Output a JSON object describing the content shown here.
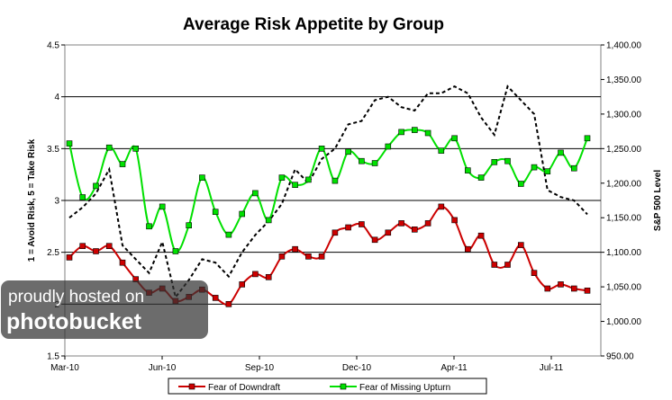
{
  "chart_data": {
    "type": "line",
    "title": "Average Risk Appetite by Group",
    "ylabel": "1 = Avoid Risk, 5 = Take Risk",
    "y2label": "S&P 500 Level",
    "ylim": [
      1.5,
      4.5
    ],
    "yticks": [
      "1.5",
      "2",
      "2.5",
      "3",
      "3.5",
      "4",
      "4.5"
    ],
    "y2lim": [
      950,
      1400
    ],
    "y2ticks": [
      "950.00",
      "1,000.00",
      "1,050.00",
      "1,100.00",
      "1,150.00",
      "1,200.00",
      "1,250.00",
      "1,300.00",
      "1,350.00",
      "1,400.00"
    ],
    "xticks": [
      "Mar-10",
      "Jun-10",
      "Sep-10",
      "Dec-10",
      "Apr-11",
      "Jul-11"
    ],
    "grid": "horizontal",
    "colors": {
      "downdraft": "#cc0000",
      "upturn": "#00e000",
      "sp500": "#000000"
    },
    "series": [
      {
        "name": "Fear of Downdraft",
        "marker": "square",
        "axis": "left",
        "values": [
          2.45,
          2.56,
          2.51,
          2.56,
          2.4,
          2.24,
          2.11,
          2.15,
          2.03,
          2.07,
          2.14,
          2.06,
          2.0,
          2.19,
          2.29,
          2.26,
          2.46,
          2.53,
          2.46,
          2.46,
          2.69,
          2.74,
          2.77,
          2.62,
          2.69,
          2.78,
          2.72,
          2.78,
          2.94,
          2.81,
          2.53,
          2.66,
          2.38,
          2.38,
          2.57,
          2.3,
          2.15,
          2.19,
          2.15,
          2.13
        ]
      },
      {
        "name": "Fear of Missing Upturn",
        "marker": "square",
        "axis": "left",
        "values": [
          3.55,
          3.03,
          3.14,
          3.51,
          3.35,
          3.5,
          2.75,
          2.94,
          2.51,
          2.76,
          3.22,
          2.89,
          2.67,
          2.87,
          3.07,
          2.81,
          3.22,
          3.15,
          3.2,
          3.5,
          3.19,
          3.47,
          3.38,
          3.36,
          3.52,
          3.66,
          3.68,
          3.65,
          3.48,
          3.6,
          3.29,
          3.22,
          3.37,
          3.38,
          3.16,
          3.32,
          3.28,
          3.46,
          3.31,
          3.6
        ]
      },
      {
        "name": "S&P 500 Level",
        "style": "dashed",
        "axis": "right",
        "legend": false,
        "values": [
          1150,
          1165,
          1185,
          1220,
          1110,
          1090,
          1070,
          1115,
          1035,
          1060,
          1090,
          1085,
          1065,
          1100,
          1125,
          1145,
          1170,
          1220,
          1200,
          1235,
          1250,
          1285,
          1290,
          1320,
          1325,
          1310,
          1305,
          1330,
          1330,
          1340,
          1330,
          1295,
          1270,
          1340,
          1320,
          1300,
          1190,
          1180,
          1175,
          1155
        ]
      }
    ]
  },
  "watermark": {
    "line1": "proudly hosted on",
    "line2": "photobucket"
  }
}
